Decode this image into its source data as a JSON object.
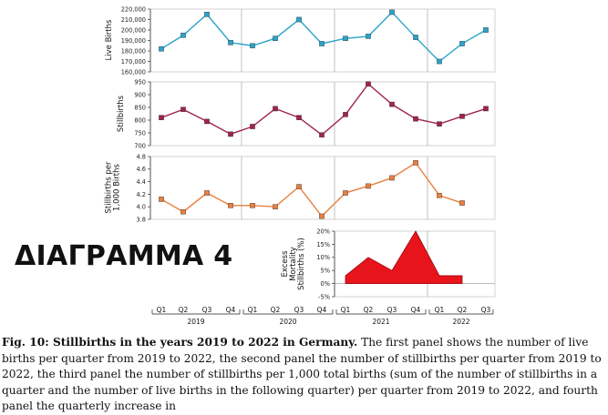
{
  "overlay_label": "ΔΙΑΓΡΑΜΜΑ 4",
  "caption": {
    "lead": "Fig. 10: Stillbirths in the years 2019 to 2022 in Germany.",
    "body": "The first panel shows the number of live births per quarter from 2019 to 2022, the second panel the number of stillbirths per quarter from 2019 to 2022, the third panel the number of stillbirths per 1,000 total births (sum of the number of stillbirths in a quarter and the number of live births in the following quarter) per quarter from 2019 to 2022, and fourth panel the quarterly increase in"
  },
  "colors": {
    "live": "#2aa3c8",
    "still": "#a0224f",
    "rate": "#e87f3e",
    "excess": "#e8141c"
  },
  "chart_data": [
    {
      "type": "line",
      "ylabel": "Live Births",
      "ylim": [
        160000,
        220000
      ],
      "yticks": [
        160000,
        170000,
        180000,
        190000,
        200000,
        210000,
        220000
      ],
      "ytick_labels": [
        "160,000",
        "170,000",
        "180,000",
        "190,000",
        "200,000",
        "210,000",
        "220,000"
      ],
      "x_index": [
        0,
        1,
        2,
        3,
        4,
        5,
        6,
        7,
        8,
        9,
        10,
        11,
        12,
        13,
        14
      ],
      "values": [
        182000,
        195000,
        215000,
        188000,
        185000,
        192000,
        210000,
        187000,
        192000,
        194000,
        217000,
        193000,
        170000,
        187000,
        200000
      ]
    },
    {
      "type": "line",
      "ylabel": "Stillbirths",
      "ylim": [
        700,
        950
      ],
      "yticks": [
        700,
        750,
        800,
        850,
        900,
        950
      ],
      "ytick_labels": [
        "700",
        "750",
        "800",
        "850",
        "900",
        "950"
      ],
      "x_index": [
        0,
        1,
        2,
        3,
        4,
        5,
        6,
        7,
        8,
        9,
        10,
        11,
        12,
        13,
        14
      ],
      "values": [
        810,
        842,
        795,
        745,
        775,
        845,
        810,
        742,
        822,
        942,
        862,
        805,
        785,
        815,
        845
      ]
    },
    {
      "type": "line",
      "ylabel": "Stillbirths per 1,000 Births",
      "ylim": [
        3.8,
        4.8
      ],
      "yticks": [
        3.8,
        4.0,
        4.2,
        4.4,
        4.6,
        4.8
      ],
      "ytick_labels": [
        "3.8",
        "4.0",
        "4.2",
        "4.4",
        "4.6",
        "4.8"
      ],
      "x_index": [
        0,
        1,
        2,
        3,
        4,
        5,
        6,
        7,
        8,
        9,
        10,
        11,
        12,
        13
      ],
      "values": [
        4.12,
        3.92,
        4.22,
        4.02,
        4.02,
        4.0,
        4.32,
        3.85,
        4.22,
        4.33,
        4.46,
        4.7,
        4.18,
        4.06
      ]
    },
    {
      "type": "area",
      "ylabel": "Excess Mortality Stillbirths (%)",
      "ylim": [
        -5,
        20
      ],
      "yticks": [
        -5,
        0,
        5,
        10,
        15,
        20
      ],
      "ytick_labels": [
        "-5%",
        "0%",
        "5%",
        "10%",
        "15%",
        "20%"
      ],
      "x_index": [
        8,
        9,
        10,
        11,
        12,
        13
      ],
      "values": [
        3,
        10,
        5,
        20,
        3,
        3
      ]
    }
  ],
  "x_axis": {
    "quarter_labels": [
      "Q1",
      "Q2",
      "Q3",
      "Q4",
      "Q1",
      "Q2",
      "Q3",
      "Q4",
      "Q1",
      "Q2",
      "Q3",
      "Q4",
      "Q1",
      "Q2",
      "Q3"
    ],
    "years": [
      "2019",
      "2020",
      "2021",
      "2022"
    ]
  }
}
